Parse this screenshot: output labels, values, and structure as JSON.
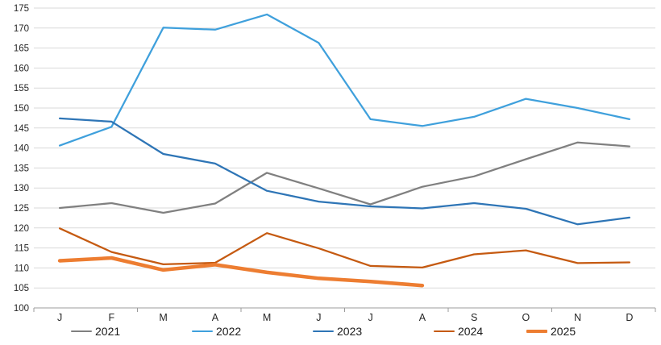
{
  "chart_data": {
    "type": "line",
    "title": "",
    "xlabel": "",
    "ylabel": "",
    "x_categories": [
      "J",
      "F",
      "M",
      "A",
      "M",
      "J",
      "J",
      "A",
      "S",
      "O",
      "N",
      "D"
    ],
    "y_axis": {
      "min": 100,
      "max": 175,
      "step": 5
    },
    "grid": true,
    "legend_position": "bottom",
    "colors": {
      "grid_line": "#D9D9D9",
      "axis_line": "#9B9B9B",
      "tick_text": "#262626"
    },
    "series": [
      {
        "name": "2021",
        "color": "#808080",
        "width": 2.25,
        "values": [
          125.0,
          126.2,
          123.8,
          126.1,
          133.8,
          129.9,
          125.9,
          130.3,
          132.9,
          137.2,
          141.4,
          140.4
        ]
      },
      {
        "name": "2022",
        "color": "#3FA0DC",
        "width": 2.25,
        "values": [
          140.6,
          145.3,
          170.1,
          169.6,
          173.4,
          166.3,
          147.2,
          145.5,
          147.8,
          152.3,
          150.0,
          147.2
        ]
      },
      {
        "name": "2023",
        "color": "#2E75B6",
        "width": 2.25,
        "values": [
          147.4,
          146.6,
          138.5,
          136.1,
          129.3,
          126.6,
          125.4,
          124.9,
          126.2,
          124.8,
          120.9,
          122.6
        ]
      },
      {
        "name": "2024",
        "color": "#C55A11",
        "width": 2.25,
        "values": [
          119.9,
          114.0,
          110.9,
          111.3,
          118.7,
          114.9,
          110.5,
          110.1,
          113.4,
          114.4,
          111.2,
          111.4
        ]
      },
      {
        "name": "2025",
        "color": "#ED7D31",
        "width": 4.5,
        "values": [
          111.8,
          112.5,
          109.5,
          110.8,
          108.9,
          107.4,
          106.6,
          105.6
        ]
      }
    ]
  },
  "legend": {
    "labels": [
      "2021",
      "2022",
      "2023",
      "2024",
      "2025"
    ]
  }
}
